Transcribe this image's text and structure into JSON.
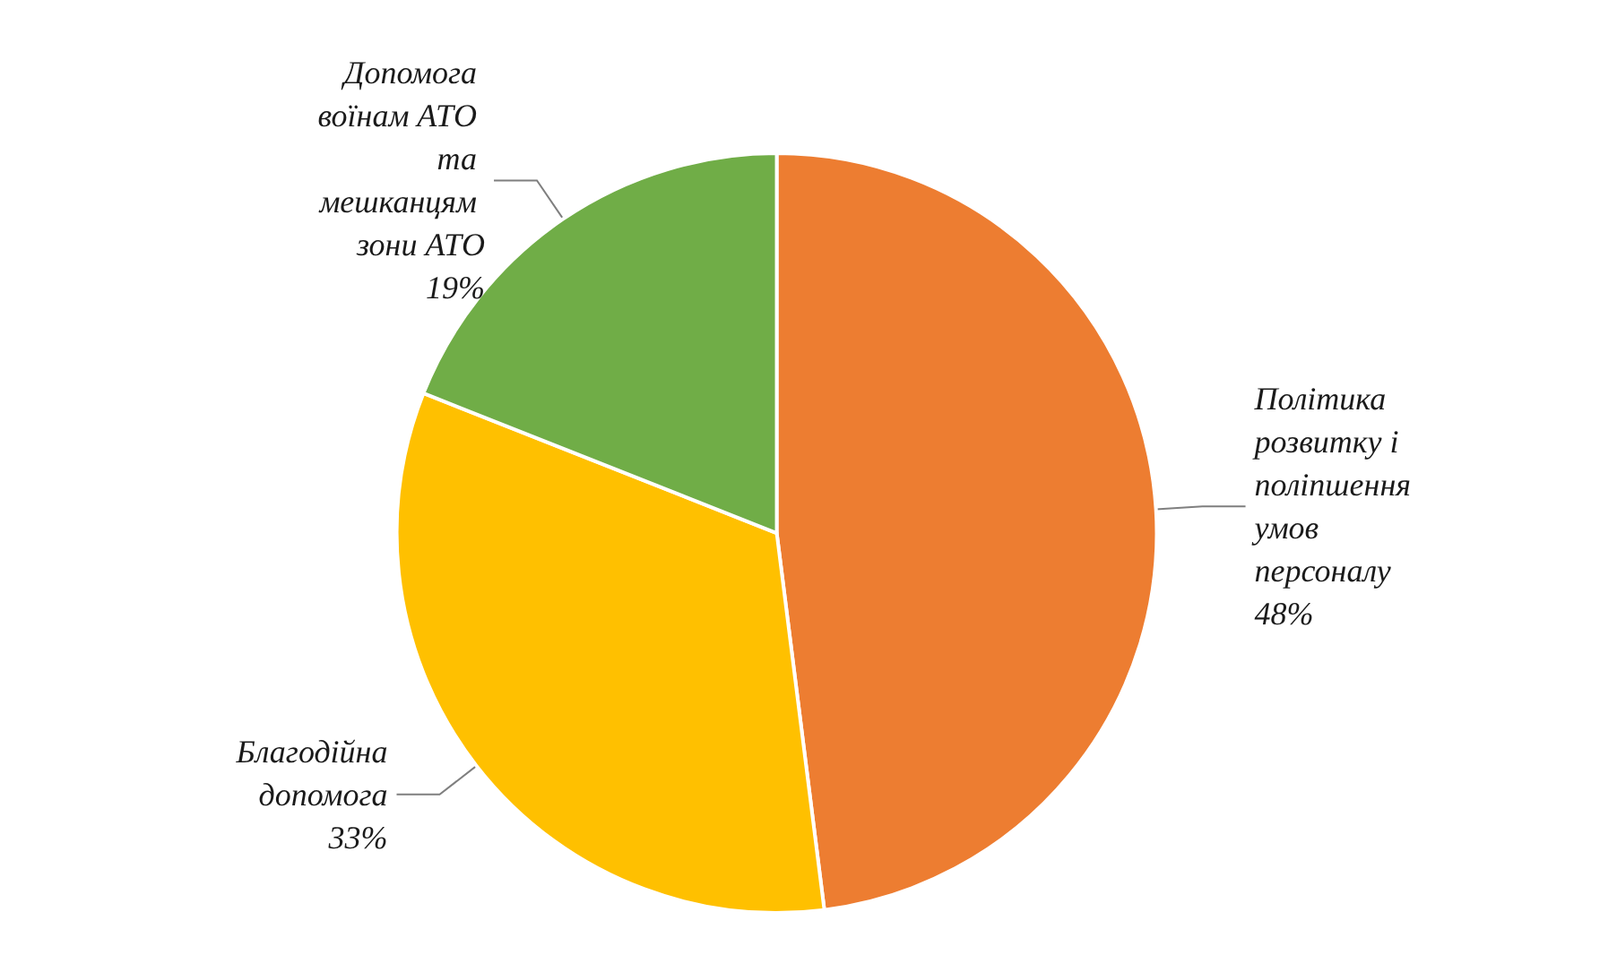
{
  "chart_data": {
    "type": "pie",
    "categories": [
      "Політика розвитку і поліпшення умов персоналу",
      "Благодійна допомога",
      "Допомога воїнам АТО та мешканцям зони АТО"
    ],
    "values": [
      48,
      33,
      19
    ],
    "value_labels": [
      "48%",
      "33%",
      "19%"
    ],
    "colors": [
      "#ed7d31",
      "#ffc000",
      "#70ad47"
    ]
  }
}
